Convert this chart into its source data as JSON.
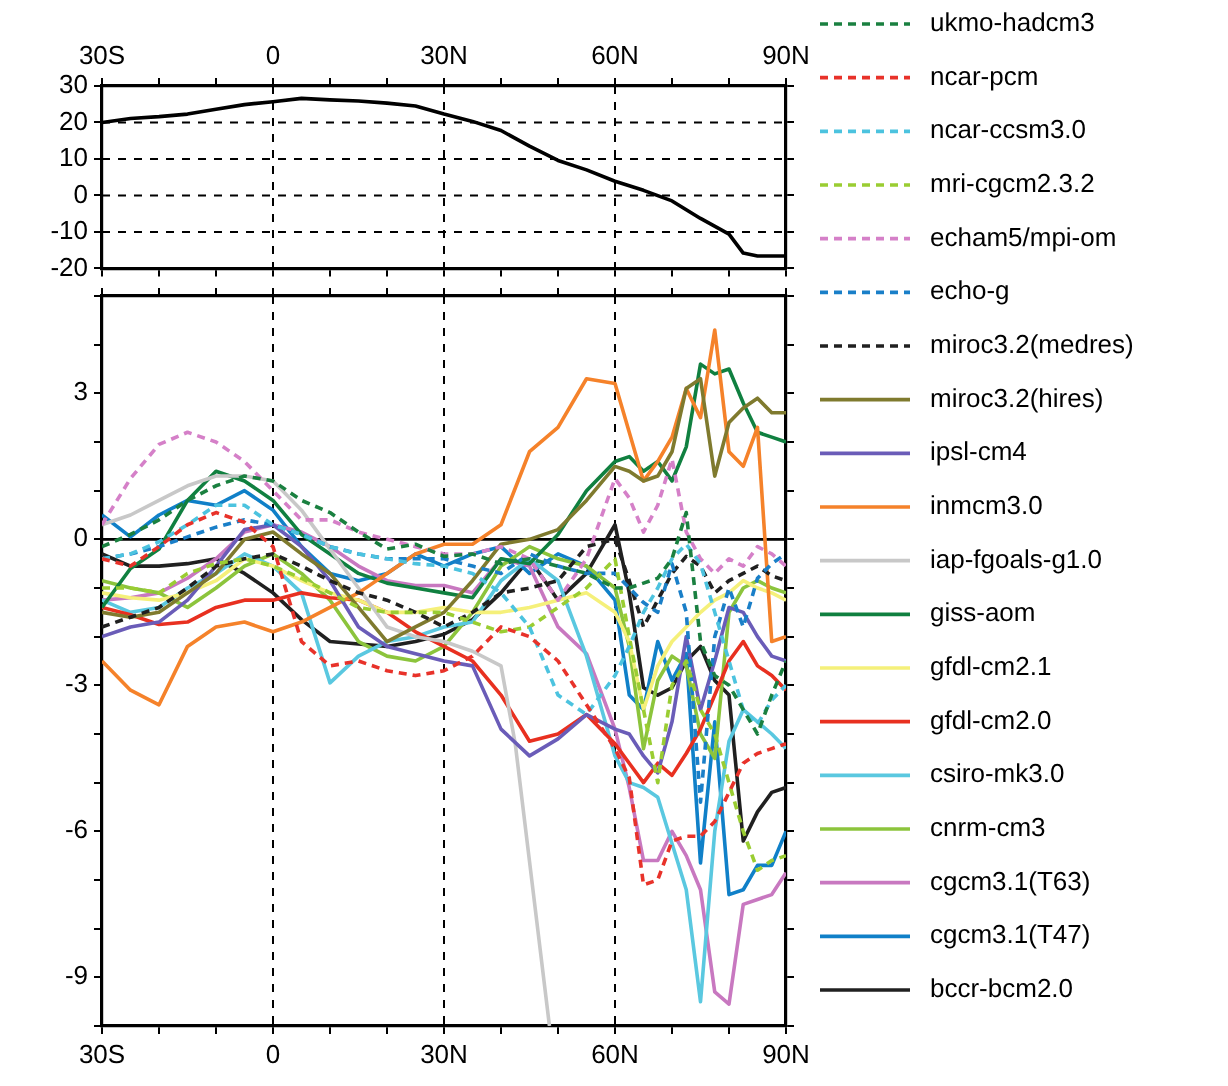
{
  "chart_data": [
    {
      "type": "line",
      "x": [
        -30,
        -25,
        -20,
        -15,
        -10,
        -5,
        0,
        5,
        10,
        15,
        20,
        25,
        30,
        35,
        40,
        45,
        50,
        55,
        60,
        65,
        70,
        75,
        80,
        82.5,
        85,
        90
      ],
      "values": [
        20,
        21.1,
        21.6,
        22.3,
        23.6,
        24.9,
        25.7,
        26.6,
        26.2,
        25.9,
        25.3,
        24.5,
        22.3,
        20.3,
        17.8,
        13.5,
        9.6,
        7.0,
        3.9,
        1.4,
        -1.5,
        -6.3,
        -10.6,
        -15.8,
        -16.6,
        -16.6
      ],
      "color": "#000000",
      "marker": "none",
      "line_style": "solid",
      "grid": true,
      "xlim": [
        -30,
        90
      ],
      "xticks": [
        {
          "value": -30,
          "label": "30S"
        },
        {
          "value": -20,
          "label": null
        },
        {
          "value": -10,
          "label": null
        },
        {
          "value": 0,
          "label": "0"
        },
        {
          "value": 10,
          "label": null
        },
        {
          "value": 20,
          "label": null
        },
        {
          "value": 30,
          "label": "30N"
        },
        {
          "value": 40,
          "label": null
        },
        {
          "value": 50,
          "label": null
        },
        {
          "value": 60,
          "label": "60N"
        },
        {
          "value": 70,
          "label": null
        },
        {
          "value": 80,
          "label": null
        },
        {
          "value": 90,
          "label": "90N"
        }
      ],
      "ylim": [
        -20,
        30
      ],
      "yticks": [
        -20,
        -10,
        0,
        10,
        20,
        30
      ]
    },
    {
      "type": "line",
      "marker": "none",
      "grid": "x",
      "legend": "right",
      "x": [
        -30,
        -25,
        -20,
        -15,
        -10,
        -5,
        0,
        5,
        10,
        15,
        20,
        25,
        30,
        35,
        40,
        45,
        50,
        55,
        60,
        62.5,
        65,
        67.5,
        70,
        72.5,
        75,
        77.5,
        80,
        82.5,
        85,
        87.5,
        90
      ],
      "xlim": [
        -30,
        90
      ],
      "xticks": [
        {
          "value": -30,
          "label": "30S"
        },
        {
          "value": -20,
          "label": null
        },
        {
          "value": -10,
          "label": null
        },
        {
          "value": 0,
          "label": "0"
        },
        {
          "value": 10,
          "label": null
        },
        {
          "value": 20,
          "label": null
        },
        {
          "value": 30,
          "label": "30N"
        },
        {
          "value": 40,
          "label": null
        },
        {
          "value": 50,
          "label": null
        },
        {
          "value": 60,
          "label": "60N"
        },
        {
          "value": 70,
          "label": null
        },
        {
          "value": 80,
          "label": null
        },
        {
          "value": 90,
          "label": "90N"
        }
      ],
      "ylim": [
        -10,
        5
      ],
      "yticks": [
        {
          "value": -10,
          "label": null
        },
        {
          "value": -9,
          "label": "-9"
        },
        {
          "value": -8,
          "label": null
        },
        {
          "value": -7,
          "label": null
        },
        {
          "value": -6,
          "label": "-6"
        },
        {
          "value": -5,
          "label": null
        },
        {
          "value": -4,
          "label": null
        },
        {
          "value": -3,
          "label": "-3"
        },
        {
          "value": -2,
          "label": null
        },
        {
          "value": -1,
          "label": null
        },
        {
          "value": 0,
          "label": "0"
        },
        {
          "value": 1,
          "label": null
        },
        {
          "value": 2,
          "label": null
        },
        {
          "value": 3,
          "label": "3"
        },
        {
          "value": 4,
          "label": null
        },
        {
          "value": 5,
          "label": null
        }
      ],
      "ref_lines": [
        {
          "axis": "y",
          "value": 0,
          "color": "#000000"
        }
      ],
      "series": [
        {
          "name": "ukmo-hadcm3",
          "color": "#1a8040",
          "line_style": "dashed",
          "values": [
            -0.15,
            0.1,
            0.4,
            0.8,
            1.1,
            1.3,
            1.2,
            0.8,
            0.55,
            0.15,
            -0.2,
            -0.1,
            -0.35,
            -0.3,
            -0.5,
            -0.4,
            -0.55,
            -0.7,
            -1.0,
            -1.0,
            -0.9,
            -0.8,
            -0.4,
            0.55,
            -2.1,
            -2.8,
            -3.0,
            -3.5,
            -4.0,
            -3.2,
            -2.5
          ]
        },
        {
          "name": "ncar-pcm",
          "color": "#e8322a",
          "line_style": "dashed",
          "values": [
            -0.4,
            -0.55,
            -0.15,
            0.3,
            0.55,
            0.35,
            -0.15,
            -2.1,
            -2.6,
            -2.5,
            -2.7,
            -2.8,
            -2.7,
            -2.4,
            -1.8,
            -2.0,
            -2.5,
            -3.4,
            -4.3,
            -4.9,
            -7.1,
            -7.0,
            -6.2,
            -6.1,
            -6.1,
            -5.8,
            -5.2,
            -4.6,
            -4.4,
            -4.3,
            -4.2
          ]
        },
        {
          "name": "ncar-ccsm3.0",
          "color": "#4cc3df",
          "line_style": "dashed",
          "values": [
            -0.4,
            -0.3,
            -0.05,
            0.3,
            0.7,
            0.7,
            0.3,
            0.1,
            -0.15,
            -0.3,
            -0.4,
            -0.5,
            -0.55,
            -0.7,
            -1.1,
            -1.8,
            -3.2,
            -3.6,
            -2.8,
            -2.2,
            -1.5,
            -1.0,
            -0.4,
            -0.1,
            -0.5,
            -1.5,
            -2.5,
            -3.5,
            -3.8,
            -3.3,
            -3.0
          ]
        },
        {
          "name": "mri-cgcm2.3.2",
          "color": "#9acd32",
          "line_style": "dashed",
          "values": [
            -1.0,
            -1.0,
            -1.1,
            -0.7,
            -0.5,
            -0.4,
            -0.55,
            -0.8,
            -1.1,
            -1.4,
            -1.5,
            -1.5,
            -1.5,
            -1.7,
            -1.9,
            -1.8,
            -1.4,
            -1.0,
            -0.4,
            -2.0,
            -3.5,
            -5.0,
            -3.0,
            -2.5,
            -3.5,
            -4.0,
            -5.0,
            -6.0,
            -6.8,
            -6.6,
            -6.5
          ]
        },
        {
          "name": "echam5/mpi-om",
          "color": "#d580c8",
          "line_style": "dashed",
          "values": [
            0.3,
            1.25,
            1.95,
            2.2,
            2.0,
            1.6,
            1.0,
            0.4,
            0.4,
            0.15,
            0.0,
            -0.15,
            -0.3,
            -0.3,
            -0.15,
            -0.4,
            -1.25,
            -0.4,
            1.25,
            0.85,
            0.15,
            0.7,
            1.65,
            0.15,
            -0.4,
            -0.7,
            -0.4,
            -0.55,
            -0.15,
            -0.3,
            -0.55
          ]
        },
        {
          "name": "echo-g",
          "color": "#1a7fc8",
          "line_style": "dashed",
          "values": [
            -0.4,
            -0.3,
            -0.15,
            0.05,
            0.25,
            0.4,
            0.3,
            0.1,
            -0.15,
            -0.3,
            -0.4,
            -0.4,
            -0.4,
            -0.55,
            -0.7,
            -0.3,
            -0.55,
            -0.7,
            -0.7,
            -1.0,
            -1.3,
            -1.5,
            -0.5,
            -1.5,
            -5.4,
            -2.0,
            -1.0,
            -1.8,
            -0.8,
            -0.5,
            -0.3
          ]
        },
        {
          "name": "miroc3.2(medres)",
          "color": "#202020",
          "line_style": "dashed",
          "values": [
            -1.8,
            -1.6,
            -1.4,
            -1.0,
            -0.55,
            -0.4,
            -0.3,
            -0.55,
            -0.85,
            -1.1,
            -1.25,
            -1.5,
            -1.8,
            -1.5,
            -1.1,
            -1.0,
            -0.85,
            -0.15,
            0,
            -0.85,
            -1.8,
            -1.25,
            -0.7,
            -0.35,
            -0.55,
            -1.1,
            -0.85,
            -0.7,
            -0.55,
            -0.75,
            -0.85
          ]
        },
        {
          "name": "miroc3.2(hires)",
          "color": "#7f7a2e",
          "line_style": "solid",
          "values": [
            -1.5,
            -1.6,
            -1.5,
            -1.1,
            -0.7,
            0,
            0.15,
            -0.3,
            -0.7,
            -1.4,
            -2.1,
            -1.8,
            -1.5,
            -0.85,
            -0.1,
            0,
            0.2,
            0.8,
            1.5,
            1.4,
            1.2,
            1.3,
            1.8,
            3.1,
            3.3,
            1.3,
            2.4,
            2.7,
            2.9,
            2.6,
            2.6
          ]
        },
        {
          "name": "ipsl-cm4",
          "color": "#6a5cb8",
          "line_style": "solid",
          "values": [
            -2.0,
            -1.8,
            -1.7,
            -1.25,
            -0.55,
            0.2,
            0.3,
            -0.15,
            -0.85,
            -1.8,
            -2.2,
            -2.35,
            -2.5,
            -2.6,
            -3.9,
            -4.45,
            -4.1,
            -3.6,
            -3.9,
            -4.0,
            -4.45,
            -4.8,
            -3.75,
            -2.0,
            -3.5,
            -2.5,
            -1.4,
            -1.5,
            -2.0,
            -2.4,
            -2.5
          ]
        },
        {
          "name": "inmcm3.0",
          "color": "#f5822a",
          "line_style": "solid",
          "values": [
            -2.5,
            -3.1,
            -3.4,
            -2.2,
            -1.8,
            -1.7,
            -1.9,
            -1.7,
            -1.4,
            -1.1,
            -0.7,
            -0.3,
            -0.1,
            -0.1,
            0.3,
            1.8,
            2.3,
            3.3,
            3.2,
            2.2,
            1.2,
            1.6,
            2.1,
            3.1,
            2.5,
            4.3,
            1.8,
            1.5,
            2.3,
            -2.1,
            -2.0
          ]
        },
        {
          "name": "iap-fgoals-g1.0",
          "color": "#c8c8c8",
          "line_style": "solid",
          "x": [
            -30,
            -25,
            -20,
            -15,
            -10,
            -5,
            0,
            5,
            10,
            15,
            20,
            25,
            30,
            35,
            40,
            42.5,
            48.5
          ],
          "values": [
            0.3,
            0.5,
            0.8,
            1.1,
            1.3,
            1.3,
            1.2,
            0.6,
            -0.2,
            -1.0,
            -1.8,
            -2.0,
            -2.1,
            -2.3,
            -2.6,
            -4.2,
            -10
          ]
        },
        {
          "name": "giss-aom",
          "color": "#108040",
          "line_style": "solid",
          "values": [
            -1.4,
            -0.6,
            -0.2,
            0.8,
            1.4,
            1.2,
            0.8,
            0.1,
            -0.3,
            -0.7,
            -0.9,
            -1.0,
            -1.1,
            -1.2,
            -0.4,
            -0.5,
            0.1,
            1.0,
            1.6,
            1.7,
            1.4,
            1.6,
            1.2,
            1.9,
            3.6,
            3.4,
            3.5,
            2.8,
            2.2,
            2.1,
            2.0
          ]
        },
        {
          "name": "gfdl-cm2.1",
          "color": "#f5f07a",
          "line_style": "solid",
          "values": [
            -1.1,
            -1.2,
            -1.25,
            -1.1,
            -0.85,
            -0.4,
            -0.55,
            -0.85,
            -1.1,
            -1.25,
            -1.5,
            -1.5,
            -1.4,
            -1.5,
            -1.5,
            -1.4,
            -1.25,
            -1.1,
            -1.5,
            -2.1,
            -3.5,
            -2.6,
            -2.1,
            -1.8,
            -1.5,
            -1.25,
            -1.1,
            -0.85,
            -1.0,
            -1.1,
            -1.25
          ]
        },
        {
          "name": "gfdl-cm2.0",
          "color": "#e83020",
          "line_style": "solid",
          "values": [
            -1.4,
            -1.55,
            -1.75,
            -1.7,
            -1.4,
            -1.25,
            -1.25,
            -1.1,
            -1.2,
            -1.25,
            -1.5,
            -1.9,
            -2.2,
            -2.5,
            -3.2,
            -4.15,
            -4.0,
            -3.6,
            -4.2,
            -4.6,
            -5.0,
            -4.6,
            -4.85,
            -4.4,
            -3.9,
            -3.2,
            -2.5,
            -2.1,
            -2.6,
            -2.8,
            -3.1
          ]
        },
        {
          "name": "csiro-mk3.0",
          "color": "#5ac8e0",
          "line_style": "solid",
          "values": [
            -1.25,
            -1.5,
            -1.4,
            -1.0,
            -0.7,
            -0.3,
            -0.55,
            -1.1,
            -2.95,
            -2.4,
            -2.1,
            -2.0,
            -1.8,
            -1.7,
            -0.85,
            -0.4,
            -0.85,
            -2.4,
            -4.45,
            -5.0,
            -5.1,
            -5.3,
            -6.25,
            -7.2,
            -9.5,
            -6.0,
            -4.15,
            -3.5,
            -3.75,
            -4.0,
            -4.3
          ]
        },
        {
          "name": "cnrm-cm3",
          "color": "#8cc43c",
          "line_style": "solid",
          "values": [
            -0.85,
            -1.0,
            -1.1,
            -1.4,
            -1.0,
            -0.55,
            -0.3,
            -0.7,
            -1.25,
            -2.1,
            -2.4,
            -2.5,
            -2.2,
            -1.5,
            -0.55,
            -0.15,
            -0.4,
            -0.55,
            -1.0,
            -2.2,
            -4.3,
            -2.9,
            -2.4,
            -2.6,
            -4.0,
            -4.5,
            -1.5,
            -1.0,
            -0.85,
            -1.0,
            -1.1
          ]
        },
        {
          "name": "cgcm3.1(T63)",
          "color": "#c878c0",
          "line_style": "solid",
          "values": [
            -1.25,
            -1.2,
            -1.1,
            -0.8,
            -0.4,
            0.15,
            0.3,
            0.15,
            -0.15,
            -0.55,
            -0.85,
            -0.95,
            -0.95,
            -1.1,
            -0.4,
            -0.55,
            -1.8,
            -2.35,
            -3.9,
            -5.1,
            -6.6,
            -6.6,
            -6.0,
            -6.5,
            -7.2,
            -9.3,
            -9.55,
            -7.5,
            -7.4,
            -7.3,
            -6.85
          ]
        },
        {
          "name": "cgcm3.1(T47)",
          "color": "#1080c8",
          "line_style": "solid",
          "values": [
            0.5,
            0.05,
            0.5,
            0.8,
            0.7,
            1.0,
            0.6,
            -0.15,
            -0.7,
            -0.85,
            -0.7,
            -0.3,
            -0.55,
            -0.3,
            -0.15,
            -0.7,
            -0.3,
            -0.55,
            -1.25,
            -3.2,
            -3.5,
            -2.1,
            -2.9,
            -2.35,
            -6.65,
            -3.75,
            -7.3,
            -7.2,
            -6.7,
            -6.7,
            -6.0
          ]
        },
        {
          "name": "bccr-bcm2.0",
          "color": "#202020",
          "line_style": "solid",
          "values": [
            -0.3,
            -0.55,
            -0.55,
            -0.5,
            -0.4,
            -0.7,
            -1.1,
            -1.65,
            -2.1,
            -2.15,
            -2.2,
            -2.1,
            -1.95,
            -1.65,
            -1.1,
            -0.4,
            -1.25,
            -0.7,
            0.3,
            -1.1,
            -3.05,
            -3.2,
            -3.05,
            -2.5,
            -2.2,
            -2.9,
            -3.2,
            -6.2,
            -5.6,
            -5.2,
            -5.1
          ]
        }
      ]
    }
  ]
}
